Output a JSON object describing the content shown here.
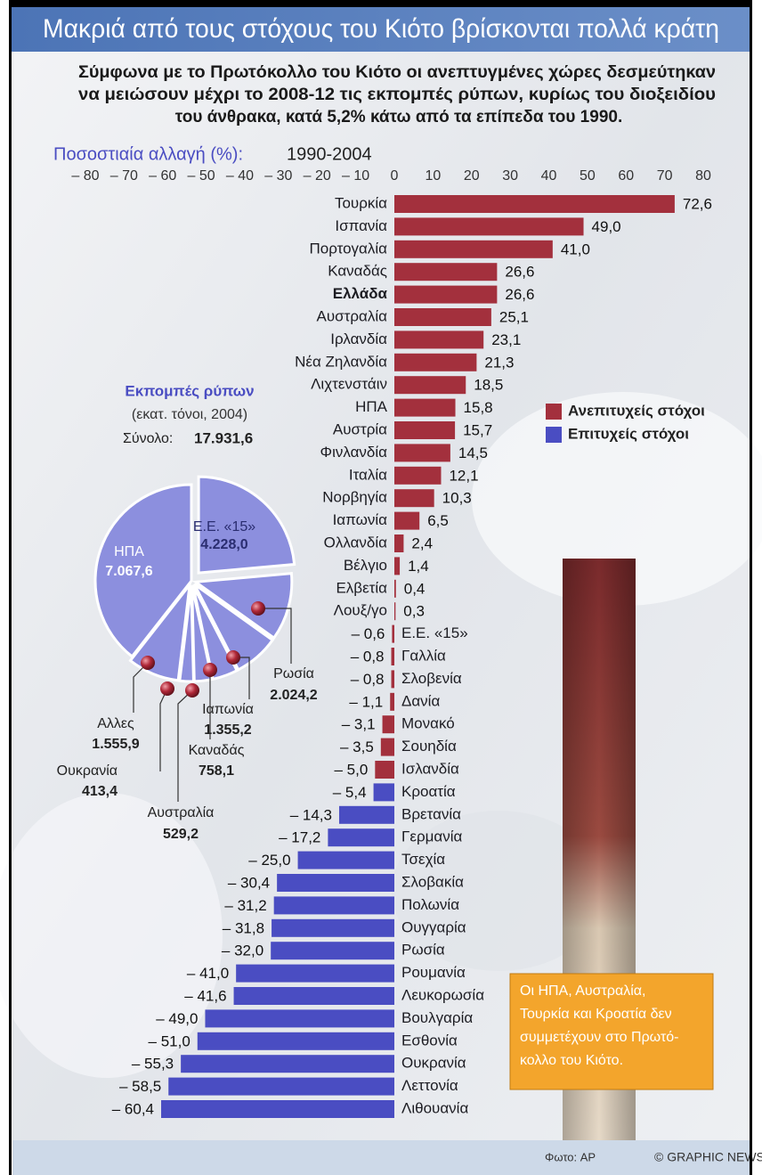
{
  "header": {
    "title": "Μακριά από τους στόχους του Κιότο βρίσκονται πολλά κράτη",
    "intro": [
      "Σύμφωνα με το Πρωτόκολλο του Κιότο οι ανεπτυγμένες χώρες δεσμεύτηκαν",
      "να μειώσουν μέχρι το 2008-12 τις εκπομπές ρύπων, κυρίως του διοξειδίου",
      "του άνθρακα, κατά 5,2% κάτω από τα επίπεδα του 1990."
    ]
  },
  "chart_data": [
    {
      "type": "bar",
      "orientation": "horizontal",
      "title": "Ποσοστιαία αλλαγή (%):",
      "subtitle": "1990-2004",
      "categories": [
        "Τουρκία",
        "Ισπανία",
        "Πορτογαλία",
        "Καναδάς",
        "Ελλάδα",
        "Αυστραλία",
        "Ιρλανδία",
        "Νέα Ζηλανδία",
        "Λιχτενστάιν",
        "ΗΠΑ",
        "Αυστρία",
        "Φινλανδία",
        "Ιταλία",
        "Νορβηγία",
        "Ιαπωνία",
        "Ολλανδία",
        "Βέλγιο",
        "Ελβετία",
        "Λουξ/γο",
        "Ε.Ε. «15»",
        "Γαλλία",
        "Σλοβενία",
        "Δανία",
        "Μονακό",
        "Σουηδία",
        "Ισλανδία",
        "Κροατία",
        "Βρετανία",
        "Γερμανία",
        "Τσεχία",
        "Σλοβακία",
        "Πολωνία",
        "Ουγγαρία",
        "Ρωσία",
        "Ρουμανία",
        "Λευκορωσία",
        "Βουλγαρία",
        "Εσθονία",
        "Ουκρανία",
        "Λεττονία",
        "Λιθουανία"
      ],
      "highlight": "Ελλάδα",
      "series": [
        {
          "name": "Ανεπιτυχείς στόχοι",
          "color": "#a3303d",
          "values": [
            72.6,
            49.0,
            41.0,
            26.6,
            26.6,
            25.1,
            23.1,
            21.3,
            18.5,
            15.8,
            15.7,
            14.5,
            12.1,
            10.3,
            6.5,
            2.4,
            1.4,
            0.4,
            0.3,
            -0.6,
            -0.8,
            -0.8,
            -1.1,
            -3.1,
            -3.5,
            -5.0,
            null,
            null,
            null,
            null,
            null,
            null,
            null,
            null,
            null,
            null,
            null,
            null,
            null,
            null,
            null
          ],
          "value_labels": [
            "72,6",
            "49,0",
            "41,0",
            "26,6",
            "26,6",
            "25,1",
            "23,1",
            "21,3",
            "18,5",
            "15,8",
            "15,7",
            "14,5",
            "12,1",
            "10,3",
            "6,5",
            "2,4",
            "1,4",
            "0,4",
            "0,3",
            "– 0,6",
            "– 0,8",
            "– 0,8",
            "– 1,1",
            "– 3,1",
            "– 3,5",
            "– 5,0",
            null,
            null,
            null,
            null,
            null,
            null,
            null,
            null,
            null,
            null,
            null,
            null,
            null,
            null,
            null
          ]
        },
        {
          "name": "Επιτυχείς στόχοι",
          "color": "#4a4dc2",
          "values": [
            null,
            null,
            null,
            null,
            null,
            null,
            null,
            null,
            null,
            null,
            null,
            null,
            null,
            null,
            null,
            null,
            null,
            null,
            null,
            null,
            null,
            null,
            null,
            null,
            null,
            null,
            -5.4,
            -14.3,
            -17.2,
            -25.0,
            -30.4,
            -31.2,
            -31.8,
            -32.0,
            -41.0,
            -41.6,
            -49.0,
            -51.0,
            -55.3,
            -58.5,
            -60.4
          ],
          "value_labels": [
            null,
            null,
            null,
            null,
            null,
            null,
            null,
            null,
            null,
            null,
            null,
            null,
            null,
            null,
            null,
            null,
            null,
            null,
            null,
            null,
            null,
            null,
            null,
            null,
            null,
            null,
            "– 5,4",
            "– 14,3",
            "– 17,2",
            "– 25,0",
            "– 30,4",
            "– 31,2",
            "– 31,8",
            "– 32,0",
            "– 41,0",
            "– 41,6",
            "– 49,0",
            "– 51,0",
            "– 55,3",
            "– 58,5",
            "– 60,4"
          ]
        }
      ],
      "xlim": [
        -80,
        80
      ],
      "xticks": [
        {
          "value": -80,
          "label": "– 80"
        },
        {
          "value": -70,
          "label": "– 70"
        },
        {
          "value": -60,
          "label": "– 60"
        },
        {
          "value": -50,
          "label": "– 50"
        },
        {
          "value": -40,
          "label": "– 40"
        },
        {
          "value": -30,
          "label": "– 30"
        },
        {
          "value": -20,
          "label": "– 20"
        },
        {
          "value": -10,
          "label": "– 10"
        },
        0,
        10,
        20,
        30,
        40,
        50,
        60,
        70,
        80
      ],
      "legend": "right"
    },
    {
      "type": "pie",
      "title": "Εκπομπές ρύπων",
      "subtitle": "(εκατ. τόνοι, 2004)",
      "total_label": "Σύνολο:",
      "total": "17.931,6",
      "categories": [
        "Ε.Ε. «15»",
        "Ρωσία",
        "Ιαπωνία",
        "Καναδάς",
        "Αυστραλία",
        "Ουκρανία",
        "Αλλες",
        "ΗΠΑ"
      ],
      "values": [
        4228.0,
        2024.2,
        1355.2,
        758.1,
        529.2,
        413.4,
        1555.9,
        7067.6
      ],
      "value_labels": [
        "4.228,0",
        "2.024,2",
        "1.355,2",
        "758,1",
        "529,2",
        "413,4",
        "1.555,9",
        "7.067,6"
      ],
      "color": "#8c8fde"
    }
  ],
  "note": [
    "Οι ΗΠΑ, Αυστραλία,",
    "Τουρκία και Κροατία δεν",
    "συμμετέχουν στο Πρωτό-",
    "κολλο του Κιότο."
  ],
  "footer": {
    "credit": "Φωτο: AP",
    "source": "© GRAPHIC NEWS"
  }
}
